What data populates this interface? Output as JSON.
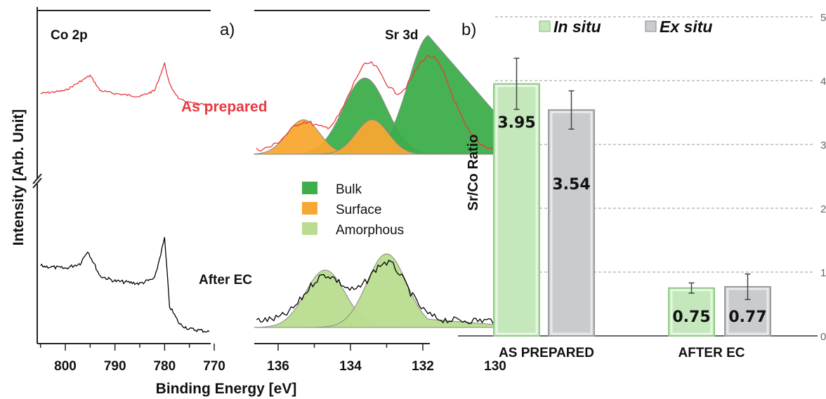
{
  "figure": {
    "panel_a": {
      "label": "a)",
      "left_title": "Co 2p",
      "right_title": "Sr 3d",
      "ylabel": "Intensity [Arb. Unit]",
      "xlabel": "Binding Energy [eV]",
      "left_xticks": [
        "800",
        "790",
        "780",
        "770"
      ],
      "right_xticks": [
        "136",
        "134",
        "132",
        "130"
      ],
      "label_as_prepared": "As prepared",
      "label_after_ec": "After EC",
      "legend": [
        {
          "label": "Bulk",
          "color": "#3dae4a"
        },
        {
          "label": "Surface",
          "color": "#f7a832"
        },
        {
          "label": "Amorphous",
          "color": "#b9dc8f"
        }
      ],
      "colors": {
        "as_prepared": "#e8393e",
        "after_ec": "#000000"
      }
    },
    "panel_b": {
      "label": "b)",
      "ylabel": "Sr/Co Ratio",
      "right_ticks": [
        "5",
        "4",
        "3",
        "2",
        "1",
        "0"
      ],
      "legend_in_situ": "In situ",
      "legend_ex_situ": "Ex situ",
      "colors": {
        "in_situ": "#c4e8bc",
        "ex_situ": "#c9cbcf"
      }
    }
  },
  "chart_data": [
    {
      "type": "line",
      "panel": "a) Co 2p",
      "title": "Co 2p",
      "xlabel": "Binding Energy [eV]",
      "ylabel": "Intensity [Arb. Unit]",
      "xlim": [
        805,
        770
      ],
      "series": [
        {
          "name": "As prepared",
          "x": [
            805,
            800,
            797,
            795,
            793,
            790,
            785,
            782,
            780,
            779,
            777,
            775,
            771
          ],
          "y": [
            0.62,
            0.63,
            0.66,
            0.68,
            0.63,
            0.62,
            0.61,
            0.63,
            0.72,
            0.65,
            0.6,
            0.59,
            0.58
          ]
        },
        {
          "name": "After EC",
          "x": [
            805,
            800,
            797,
            795.5,
            793,
            790,
            785,
            782,
            780,
            779,
            777,
            775,
            771
          ],
          "y": [
            0.28,
            0.27,
            0.29,
            0.34,
            0.24,
            0.22,
            0.21,
            0.23,
            0.39,
            0.12,
            0.05,
            0.03,
            0.02
          ]
        }
      ]
    },
    {
      "type": "area",
      "panel": "a) Sr 3d",
      "title": "Sr 3d",
      "xlabel": "Binding Energy [eV]",
      "xlim": [
        137,
        129
      ],
      "components_as_prepared": [
        {
          "name": "Surface",
          "center": 135.3,
          "height": 0.29
        },
        {
          "name": "Surface",
          "center": 133.4,
          "height": 0.29
        },
        {
          "name": "Bulk",
          "center": 133.6,
          "height": 0.64
        },
        {
          "name": "Bulk",
          "center": 131.8,
          "height": 1.0
        }
      ],
      "components_after_ec": [
        {
          "name": "Amorphous",
          "center": 134.7,
          "height": 0.78
        },
        {
          "name": "Amorphous",
          "center": 133.0,
          "height": 1.0
        }
      ]
    },
    {
      "type": "bar",
      "panel": "b)",
      "categories": [
        "AS PREPARED",
        "AFTER EC"
      ],
      "ylabel": "Sr/Co Ratio",
      "ylim": [
        0,
        5
      ],
      "grid": true,
      "series": [
        {
          "name": "In situ",
          "values": [
            3.95,
            0.75
          ],
          "errors": [
            0.4,
            0.08
          ],
          "labels": [
            "3.95",
            "0.75"
          ]
        },
        {
          "name": "Ex situ",
          "values": [
            3.54,
            0.77
          ],
          "errors": [
            0.3,
            0.2
          ],
          "labels": [
            "3.54",
            "0.77"
          ]
        }
      ]
    }
  ]
}
